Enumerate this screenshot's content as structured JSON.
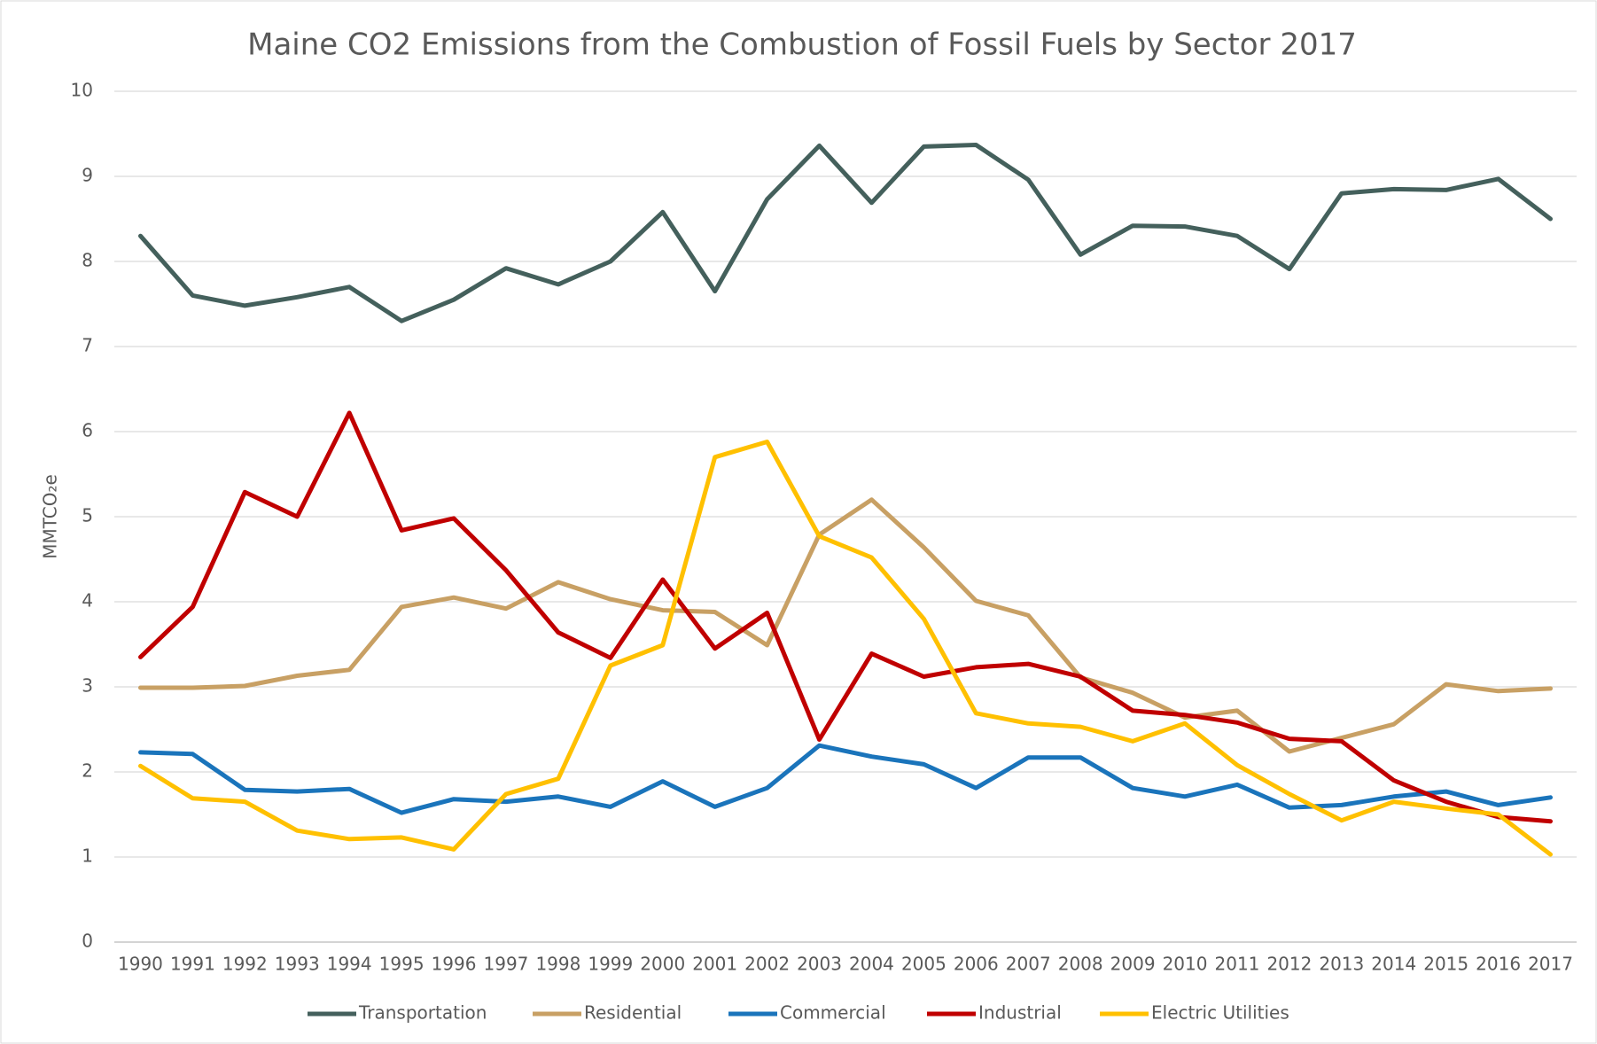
{
  "chart_data": {
    "type": "line",
    "title": "Maine CO2 Emissions from the Combustion of Fossil Fuels by Sector 2017",
    "y_label": "MMTCO₂e",
    "categories": [
      "1990",
      "1991",
      "1992",
      "1993",
      "1994",
      "1995",
      "1996",
      "1997",
      "1998",
      "1999",
      "2000",
      "2001",
      "2002",
      "2003",
      "2004",
      "2005",
      "2006",
      "2007",
      "2008",
      "2009",
      "2010",
      "2011",
      "2012",
      "2013",
      "2014",
      "2015",
      "2016",
      "2017"
    ],
    "series": [
      {
        "name": "Transportation",
        "color": "#44605c",
        "values": [
          8.3,
          7.6,
          7.48,
          7.58,
          7.7,
          7.3,
          7.55,
          7.92,
          7.73,
          8.0,
          8.58,
          7.65,
          8.73,
          9.36,
          8.69,
          9.35,
          9.37,
          8.96,
          8.08,
          8.42,
          8.41,
          8.3,
          7.91,
          8.8,
          8.85,
          8.84,
          8.97,
          8.5
        ]
      },
      {
        "name": "Residential",
        "color": "#c8a064",
        "values": [
          2.99,
          2.99,
          3.01,
          3.13,
          3.2,
          3.94,
          4.05,
          3.92,
          4.23,
          4.03,
          3.9,
          3.88,
          3.49,
          4.79,
          5.2,
          4.64,
          4.01,
          3.84,
          3.11,
          2.93,
          2.64,
          2.72,
          2.24,
          2.4,
          2.56,
          3.03,
          2.95,
          2.98
        ]
      },
      {
        "name": "Commercial",
        "color": "#1a74bb",
        "values": [
          2.23,
          2.21,
          1.79,
          1.77,
          1.8,
          1.52,
          1.68,
          1.65,
          1.71,
          1.59,
          1.89,
          1.59,
          1.81,
          2.31,
          2.18,
          2.09,
          1.81,
          2.17,
          2.17,
          1.81,
          1.71,
          1.85,
          1.58,
          1.61,
          1.71,
          1.77,
          1.61,
          1.7
        ]
      },
      {
        "name": "Industrial",
        "color": "#c00000",
        "values": [
          3.35,
          3.94,
          5.29,
          5.0,
          6.22,
          4.84,
          4.98,
          4.37,
          3.64,
          3.34,
          4.26,
          3.45,
          3.87,
          2.38,
          3.39,
          3.12,
          3.23,
          3.27,
          3.12,
          2.72,
          2.67,
          2.58,
          2.39,
          2.36,
          1.9,
          1.65,
          1.47,
          1.42
        ]
      },
      {
        "name": "Electric Utilities",
        "color": "#ffc000",
        "values": [
          2.07,
          1.69,
          1.65,
          1.31,
          1.21,
          1.23,
          1.09,
          1.74,
          1.92,
          3.25,
          3.49,
          5.7,
          5.88,
          4.77,
          4.52,
          3.8,
          2.69,
          2.57,
          2.53,
          2.36,
          2.57,
          2.08,
          1.74,
          1.43,
          1.65,
          1.57,
          1.5,
          1.03
        ]
      }
    ],
    "ylim": [
      0,
      10
    ],
    "yticks": [
      0,
      1,
      2,
      3,
      4,
      5,
      6,
      7,
      8,
      9,
      10
    ],
    "grid": true,
    "legend": "bottom"
  }
}
